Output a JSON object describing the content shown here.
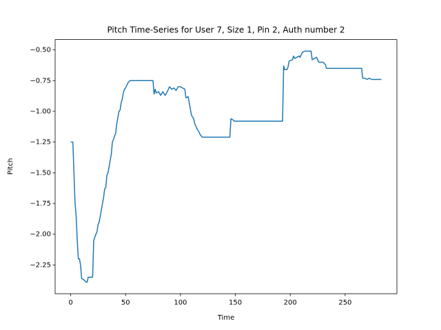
{
  "chart_data": {
    "type": "line",
    "title": "Pitch Time-Series for User 7, Size 1, Pin 2, Auth number 2",
    "x_label": "Time",
    "y_label": "Pitch",
    "color": "#1f77b4",
    "x": [
      0,
      1,
      2,
      3,
      4,
      5,
      6,
      7,
      8,
      9,
      10,
      12,
      14,
      15,
      16,
      20,
      21,
      23,
      24,
      25,
      26,
      28,
      30,
      31,
      32,
      33,
      34,
      35,
      36,
      37,
      38,
      39,
      40,
      41,
      42,
      43,
      44,
      45,
      46,
      47,
      48,
      49,
      50,
      52,
      54,
      75,
      76,
      77,
      78,
      80,
      82,
      84,
      86,
      88,
      90,
      92,
      94,
      96,
      98,
      100,
      102,
      104,
      105,
      107,
      108,
      110,
      112,
      113,
      115,
      117,
      118,
      119,
      120,
      145,
      146,
      148,
      149,
      193,
      194,
      195,
      197,
      198,
      199,
      202,
      203,
      204,
      206,
      208,
      209,
      211,
      213,
      219,
      220,
      222,
      224,
      226,
      228,
      230,
      232,
      233,
      265,
      266,
      268,
      270,
      272,
      274,
      276,
      283
    ],
    "values": [
      -1.25,
      -1.25,
      -1.25,
      -1.5,
      -1.75,
      -1.85,
      -2.05,
      -2.2,
      -2.2,
      -2.25,
      -2.36,
      -2.37,
      -2.39,
      -2.39,
      -2.35,
      -2.35,
      -2.05,
      -2.0,
      -1.98,
      -1.92,
      -1.9,
      -1.8,
      -1.7,
      -1.63,
      -1.62,
      -1.52,
      -1.5,
      -1.45,
      -1.4,
      -1.35,
      -1.25,
      -1.23,
      -1.2,
      -1.18,
      -1.1,
      -1.05,
      -1.0,
      -0.99,
      -0.93,
      -0.9,
      -0.85,
      -0.82,
      -0.81,
      -0.77,
      -0.75,
      -0.75,
      -0.86,
      -0.82,
      -0.85,
      -0.84,
      -0.87,
      -0.84,
      -0.87,
      -0.84,
      -0.8,
      -0.82,
      -0.81,
      -0.83,
      -0.8,
      -0.8,
      -0.81,
      -0.82,
      -0.89,
      -0.88,
      -0.93,
      -1.03,
      -1.06,
      -1.1,
      -1.14,
      -1.17,
      -1.19,
      -1.2,
      -1.21,
      -1.21,
      -1.06,
      -1.07,
      -1.08,
      -1.08,
      -0.63,
      -0.66,
      -0.66,
      -0.64,
      -0.59,
      -0.58,
      -0.55,
      -0.57,
      -0.56,
      -0.55,
      -0.56,
      -0.52,
      -0.51,
      -0.51,
      -0.58,
      -0.57,
      -0.56,
      -0.6,
      -0.6,
      -0.6,
      -0.62,
      -0.65,
      -0.65,
      -0.73,
      -0.73,
      -0.74,
      -0.73,
      -0.74,
      -0.74,
      -0.74
    ],
    "xlim": [
      -14.15,
      297.15
    ],
    "ylim": [
      -2.484,
      -0.416
    ],
    "xticks": [
      0,
      50,
      100,
      150,
      200,
      250
    ],
    "yticks": [
      {
        "value": -2.25,
        "label": "−2.25"
      },
      {
        "value": -2.0,
        "label": "−2.00"
      },
      {
        "value": -1.75,
        "label": "−1.75"
      },
      {
        "value": -1.5,
        "label": "−1.50"
      },
      {
        "value": -1.25,
        "label": "−1.25"
      },
      {
        "value": -1.0,
        "label": "−1.00"
      },
      {
        "value": -0.75,
        "label": "−0.75"
      },
      {
        "value": -0.5,
        "label": "−0.50"
      }
    ],
    "grid": false
  }
}
